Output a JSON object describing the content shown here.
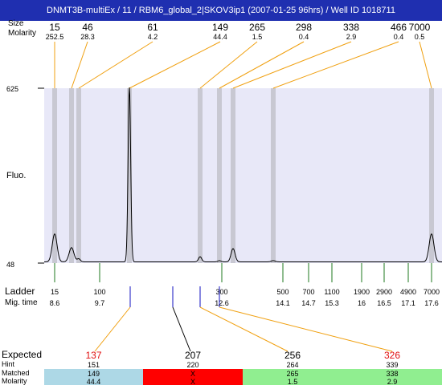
{
  "header": {
    "title": "DNMT3B-multiEx / 11 / RBM6_global_2|SKOV3ip1 (2007-01-25 96hrs) / Well ID 1018711"
  },
  "top_labels": {
    "size": "Size",
    "molarity": "Molarity"
  },
  "y_axis": {
    "label": "Fluo.",
    "max_tick": "625",
    "min_tick": "48"
  },
  "bottom_labels": {
    "ladder": "Ladder",
    "mig_time": "Mig. time"
  },
  "expected_labels": {
    "expected": "Expected",
    "hint": "Hint",
    "matched": "Matched",
    "molarity": "Molarity"
  },
  "colors": {
    "title_bg": "#1f2fb0",
    "plot_bg": "#e8e8f8",
    "peak_band": "#c8c8d2",
    "callout": "#f0a010",
    "ladder_tick": "#1f7a1f",
    "expected_tick": "#1010c0",
    "expected_text": "#e01010",
    "cell_blue": "#add8e6",
    "cell_red": "#ff0000",
    "cell_green": "#90ee90"
  },
  "chart_data": {
    "type": "line",
    "title": "DNMT3B-multiEx / 11 / RBM6_global_2|SKOV3ip1 (2007-01-25 96hrs) / Well ID 1018711",
    "ylabel": "Fluo.",
    "ylim": [
      48,
      625
    ],
    "ladder": {
      "sizes": [
        "15",
        "100",
        "300",
        "500",
        "700",
        "1100",
        "1900",
        "2900",
        "4900",
        "7000"
      ],
      "mig_times": [
        "8.6",
        "9.7",
        "12.6",
        "14.1",
        "14.7",
        "15.3",
        "16",
        "16.5",
        "17.1",
        "17.6"
      ],
      "mig_time_values": [
        8.6,
        9.7,
        12.6,
        14.1,
        14.7,
        15.3,
        16,
        16.5,
        17.1,
        17.6
      ]
    },
    "peaks": [
      {
        "size": "15",
        "molarity": "252.5",
        "height": 140
      },
      {
        "size": "46",
        "molarity": "28.3",
        "height": 95
      },
      {
        "size": "61",
        "molarity": "4.2",
        "height": 58
      },
      {
        "size": "149",
        "molarity": "44.4",
        "height": 625
      },
      {
        "size": "265",
        "molarity": "1.5",
        "height": 65
      },
      {
        "size": "298",
        "molarity": "0.4",
        "height": 52
      },
      {
        "size": "338",
        "molarity": "2.9",
        "height": 92
      },
      {
        "size": "466",
        "molarity": "0.4",
        "height": 52
      },
      {
        "size": "7000",
        "molarity": "0.5",
        "height": 140
      }
    ],
    "expected": [
      {
        "expected": "137",
        "hint": "151",
        "matched": "149",
        "molarity": "44.4",
        "status": "blue"
      },
      {
        "expected": "207",
        "hint": "220",
        "matched": "X",
        "molarity": "X",
        "status": "red"
      },
      {
        "expected": "256",
        "hint": "264",
        "matched": "265",
        "molarity": "1.5",
        "status": "green"
      },
      {
        "expected": "326",
        "hint": "339",
        "matched": "338",
        "molarity": "2.9",
        "status": "green"
      }
    ]
  }
}
